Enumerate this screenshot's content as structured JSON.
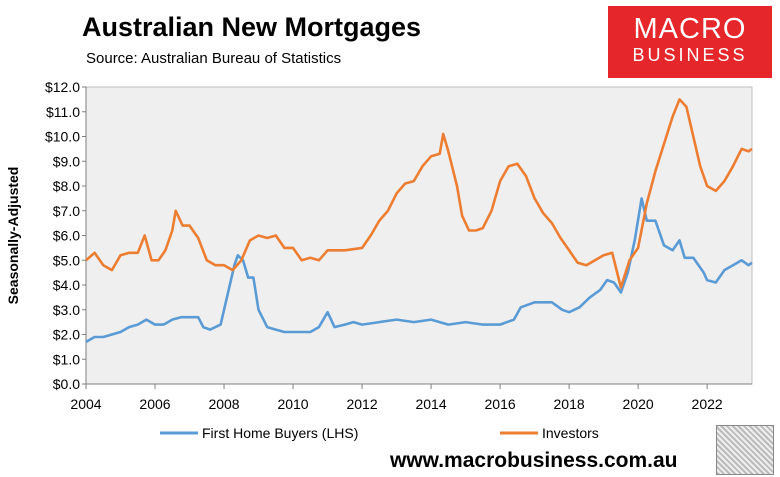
{
  "header": {
    "title": "Australian New Mortgages",
    "subtitle": "Source: Australian Bureau of Statistics"
  },
  "logo": {
    "line1": "MACRO",
    "line2": "BUSINESS",
    "color": "#e5262a"
  },
  "footer": {
    "url": "www.macrobusiness.com.au"
  },
  "chart_data": {
    "type": "line",
    "ylabel": "Seasonally-Adjusted",
    "xlabel": "",
    "ylim": [
      0,
      12
    ],
    "xlim": [
      2004,
      2023.3
    ],
    "y_ticks": [
      "$0.0",
      "$1.0",
      "$2.0",
      "$3.0",
      "$4.0",
      "$5.0",
      "$6.0",
      "$7.0",
      "$8.0",
      "$9.0",
      "$10.0",
      "$11.0",
      "$12.0"
    ],
    "x_ticks": [
      "2004",
      "2006",
      "2008",
      "2010",
      "2012",
      "2014",
      "2016",
      "2018",
      "2020",
      "2022"
    ],
    "grid": false,
    "legend_position": "bottom",
    "plot_background": "#efefef",
    "series": [
      {
        "name": "First Home Buyers (LHS)",
        "color": "#5b9bd5",
        "points": [
          [
            2004.0,
            1.7
          ],
          [
            2004.25,
            1.9
          ],
          [
            2004.5,
            1.9
          ],
          [
            2004.75,
            2.0
          ],
          [
            2005.0,
            2.1
          ],
          [
            2005.25,
            2.3
          ],
          [
            2005.5,
            2.4
          ],
          [
            2005.75,
            2.6
          ],
          [
            2006.0,
            2.4
          ],
          [
            2006.25,
            2.4
          ],
          [
            2006.5,
            2.6
          ],
          [
            2006.75,
            2.7
          ],
          [
            2007.0,
            2.7
          ],
          [
            2007.25,
            2.7
          ],
          [
            2007.4,
            2.3
          ],
          [
            2007.6,
            2.2
          ],
          [
            2007.9,
            2.4
          ],
          [
            2008.1,
            3.6
          ],
          [
            2008.3,
            4.8
          ],
          [
            2008.4,
            5.2
          ],
          [
            2008.55,
            5.0
          ],
          [
            2008.7,
            4.3
          ],
          [
            2008.85,
            4.3
          ],
          [
            2009.0,
            3.0
          ],
          [
            2009.25,
            2.3
          ],
          [
            2009.5,
            2.2
          ],
          [
            2009.75,
            2.1
          ],
          [
            2010.0,
            2.1
          ],
          [
            2010.25,
            2.1
          ],
          [
            2010.5,
            2.1
          ],
          [
            2010.75,
            2.3
          ],
          [
            2011.0,
            2.9
          ],
          [
            2011.2,
            2.3
          ],
          [
            2011.5,
            2.4
          ],
          [
            2011.75,
            2.5
          ],
          [
            2012.0,
            2.4
          ],
          [
            2012.5,
            2.5
          ],
          [
            2013.0,
            2.6
          ],
          [
            2013.5,
            2.5
          ],
          [
            2014.0,
            2.6
          ],
          [
            2014.5,
            2.4
          ],
          [
            2015.0,
            2.5
          ],
          [
            2015.5,
            2.4
          ],
          [
            2016.0,
            2.4
          ],
          [
            2016.4,
            2.6
          ],
          [
            2016.6,
            3.1
          ],
          [
            2017.0,
            3.3
          ],
          [
            2017.5,
            3.3
          ],
          [
            2017.8,
            3.0
          ],
          [
            2018.0,
            2.9
          ],
          [
            2018.3,
            3.1
          ],
          [
            2018.6,
            3.5
          ],
          [
            2018.9,
            3.8
          ],
          [
            2019.1,
            4.2
          ],
          [
            2019.3,
            4.1
          ],
          [
            2019.5,
            3.7
          ],
          [
            2019.7,
            4.5
          ],
          [
            2019.9,
            5.8
          ],
          [
            2020.1,
            7.5
          ],
          [
            2020.25,
            6.6
          ],
          [
            2020.5,
            6.6
          ],
          [
            2020.75,
            5.6
          ],
          [
            2021.0,
            5.4
          ],
          [
            2021.2,
            5.8
          ],
          [
            2021.35,
            5.1
          ],
          [
            2021.6,
            5.1
          ],
          [
            2021.9,
            4.5
          ],
          [
            2022.0,
            4.2
          ],
          [
            2022.25,
            4.1
          ],
          [
            2022.5,
            4.6
          ],
          [
            2022.75,
            4.8
          ],
          [
            2023.0,
            5.0
          ],
          [
            2023.2,
            4.8
          ],
          [
            2023.3,
            4.9
          ]
        ]
      },
      {
        "name": "Investors",
        "color": "#ed7d31",
        "points": [
          [
            2004.0,
            5.0
          ],
          [
            2004.25,
            5.3
          ],
          [
            2004.5,
            4.8
          ],
          [
            2004.75,
            4.6
          ],
          [
            2005.0,
            5.2
          ],
          [
            2005.25,
            5.3
          ],
          [
            2005.5,
            5.3
          ],
          [
            2005.7,
            6.0
          ],
          [
            2005.9,
            5.0
          ],
          [
            2006.1,
            5.0
          ],
          [
            2006.3,
            5.4
          ],
          [
            2006.5,
            6.2
          ],
          [
            2006.6,
            7.0
          ],
          [
            2006.8,
            6.4
          ],
          [
            2007.0,
            6.4
          ],
          [
            2007.25,
            5.9
          ],
          [
            2007.5,
            5.0
          ],
          [
            2007.75,
            4.8
          ],
          [
            2008.0,
            4.8
          ],
          [
            2008.25,
            4.6
          ],
          [
            2008.5,
            5.0
          ],
          [
            2008.75,
            5.8
          ],
          [
            2009.0,
            6.0
          ],
          [
            2009.25,
            5.9
          ],
          [
            2009.5,
            6.0
          ],
          [
            2009.75,
            5.5
          ],
          [
            2010.0,
            5.5
          ],
          [
            2010.25,
            5.0
          ],
          [
            2010.5,
            5.1
          ],
          [
            2010.75,
            5.0
          ],
          [
            2011.0,
            5.4
          ],
          [
            2011.5,
            5.4
          ],
          [
            2012.0,
            5.5
          ],
          [
            2012.25,
            6.0
          ],
          [
            2012.5,
            6.6
          ],
          [
            2012.75,
            7.0
          ],
          [
            2013.0,
            7.7
          ],
          [
            2013.25,
            8.1
          ],
          [
            2013.5,
            8.2
          ],
          [
            2013.75,
            8.8
          ],
          [
            2014.0,
            9.2
          ],
          [
            2014.25,
            9.3
          ],
          [
            2014.35,
            10.1
          ],
          [
            2014.5,
            9.4
          ],
          [
            2014.75,
            8.0
          ],
          [
            2014.9,
            6.8
          ],
          [
            2015.1,
            6.2
          ],
          [
            2015.3,
            6.2
          ],
          [
            2015.5,
            6.3
          ],
          [
            2015.75,
            7.0
          ],
          [
            2016.0,
            8.2
          ],
          [
            2016.25,
            8.8
          ],
          [
            2016.5,
            8.9
          ],
          [
            2016.75,
            8.4
          ],
          [
            2017.0,
            7.5
          ],
          [
            2017.25,
            6.9
          ],
          [
            2017.5,
            6.5
          ],
          [
            2017.75,
            5.9
          ],
          [
            2018.0,
            5.4
          ],
          [
            2018.25,
            4.9
          ],
          [
            2018.5,
            4.8
          ],
          [
            2018.75,
            5.0
          ],
          [
            2019.0,
            5.2
          ],
          [
            2019.25,
            5.3
          ],
          [
            2019.5,
            3.9
          ],
          [
            2019.75,
            5.0
          ],
          [
            2020.0,
            5.5
          ],
          [
            2020.25,
            7.3
          ],
          [
            2020.5,
            8.6
          ],
          [
            2020.75,
            9.7
          ],
          [
            2021.0,
            10.8
          ],
          [
            2021.2,
            11.5
          ],
          [
            2021.4,
            11.2
          ],
          [
            2021.6,
            10.0
          ],
          [
            2021.8,
            8.8
          ],
          [
            2022.0,
            8.0
          ],
          [
            2022.25,
            7.8
          ],
          [
            2022.5,
            8.2
          ],
          [
            2022.75,
            8.8
          ],
          [
            2023.0,
            9.5
          ],
          [
            2023.2,
            9.4
          ],
          [
            2023.3,
            9.5
          ]
        ]
      }
    ]
  }
}
